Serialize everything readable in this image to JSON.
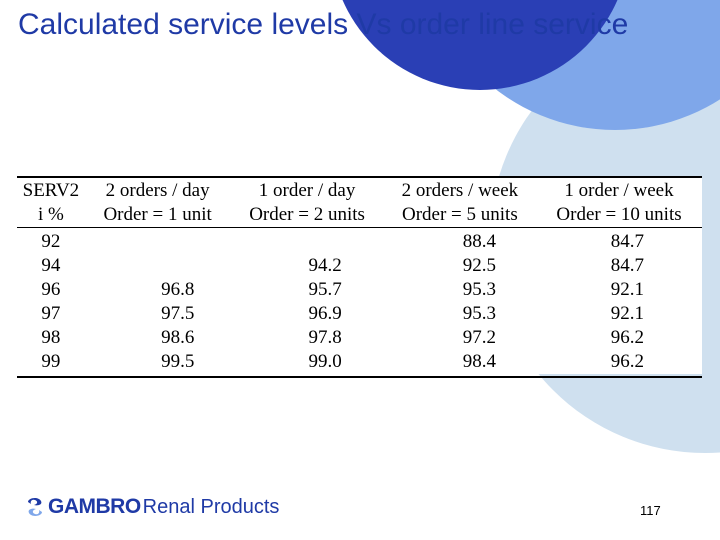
{
  "slide": {
    "title": "Calculated service levels Vs order line service",
    "page_number": "117"
  },
  "table": {
    "headers": [
      {
        "line1": "SERV2",
        "line2": "i %"
      },
      {
        "line1": "2 orders / day",
        "line2": "Order = 1 unit"
      },
      {
        "line1": "1 order / day",
        "line2": "Order = 2 units"
      },
      {
        "line1": "2 orders / week",
        "line2": "Order = 5 units"
      },
      {
        "line1": "1 order / week",
        "line2": "Order = 10 units"
      }
    ],
    "rows": [
      [
        "92",
        "",
        "",
        "88.4",
        "84.7"
      ],
      [
        "94",
        "",
        "94.2",
        "92.5",
        "84.7"
      ],
      [
        "96",
        "96.8",
        "95.7",
        "95.3",
        "92.1"
      ],
      [
        "97",
        "97.5",
        "96.9",
        "95.3",
        "92.1"
      ],
      [
        "98",
        "98.6",
        "97.8",
        "97.2",
        "96.2"
      ],
      [
        "99",
        "99.5",
        "99.0",
        "98.4",
        "96.2"
      ]
    ]
  },
  "footer": {
    "logo_brand": "GAMBRO",
    "logo_sub": "Renal Products"
  },
  "colors": {
    "title": "#1f3aa6",
    "deco_dark": "#2a3fb5",
    "deco_mid": "#7fa7ea",
    "deco_light": "#c9dcef"
  }
}
